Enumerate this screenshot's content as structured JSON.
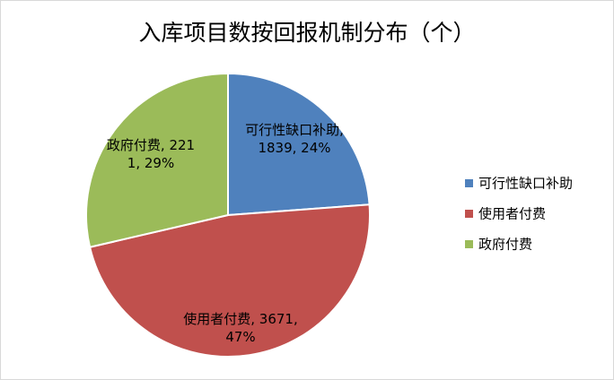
{
  "chart_data": {
    "type": "pie",
    "title": "入库项目数按回报机制分布（个）",
    "categories": [
      "可行性缺口补助",
      "使用者付费",
      "政府付费"
    ],
    "values": [
      1839,
      3671,
      2211
    ],
    "value_labels": [
      "可行性缺口补助, 1839, 24%",
      "使用者付费, 3671, 47%",
      "政府付费, 2211, 29%"
    ],
    "colors": [
      "#4f81bd",
      "#c0504d",
      "#9bbb59"
    ],
    "legend": "right"
  }
}
